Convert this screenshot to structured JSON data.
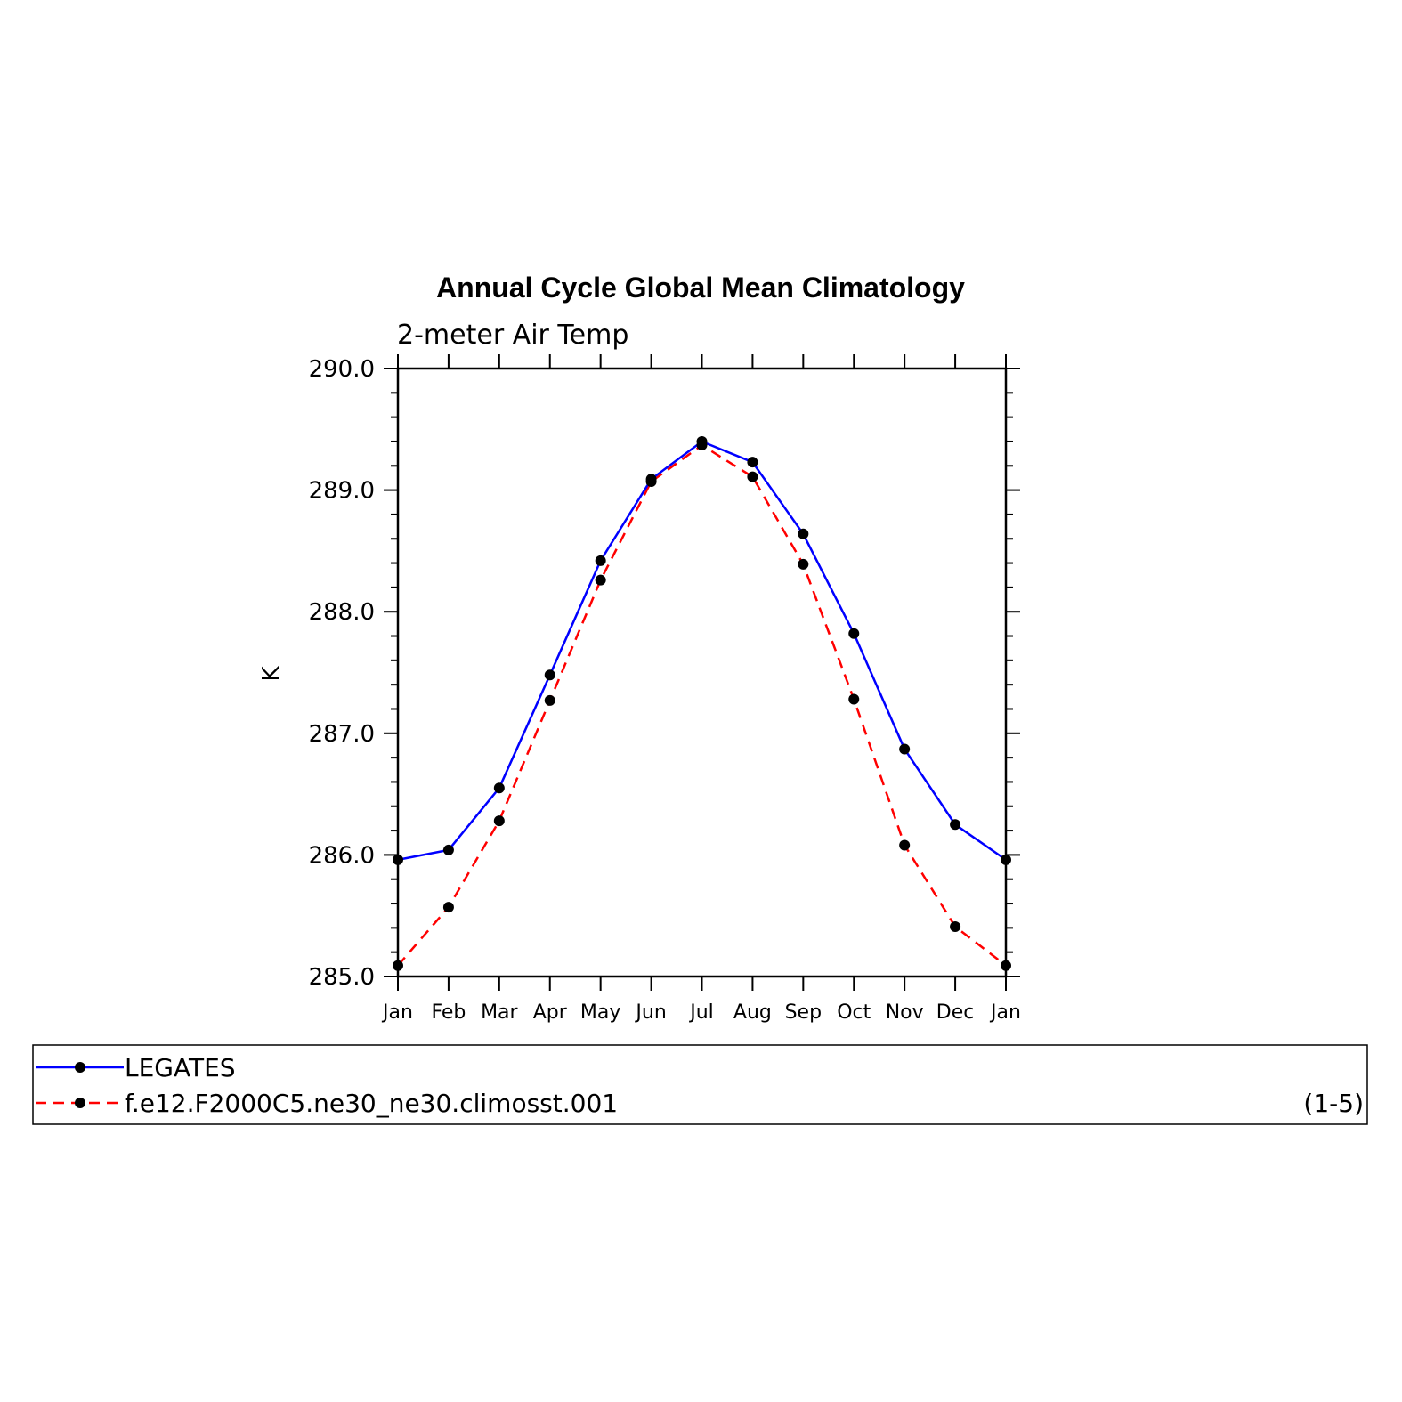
{
  "chart_data": {
    "type": "line",
    "title": "Annual Cycle Global Mean Climatology",
    "subtitle": "2-meter Air Temp",
    "ylabel": "K",
    "xlabel": "",
    "categories": [
      "Jan",
      "Feb",
      "Mar",
      "Apr",
      "May",
      "Jun",
      "Jul",
      "Aug",
      "Sep",
      "Oct",
      "Nov",
      "Dec",
      "Jan"
    ],
    "ylim": [
      285.0,
      290.0
    ],
    "yticks": [
      "285.0",
      "286.0",
      "287.0",
      "288.0",
      "289.0",
      "290.0"
    ],
    "series": [
      {
        "name": "LEGATES",
        "color": "#0000ff",
        "style": "solid",
        "values": [
          285.96,
          286.04,
          286.55,
          287.48,
          288.42,
          289.09,
          289.4,
          289.23,
          288.64,
          287.82,
          286.87,
          286.25,
          285.96
        ]
      },
      {
        "name": "f.e12.F2000C5.ne30_ne30.climosst.001",
        "color": "#ff0000",
        "style": "dashed",
        "values": [
          285.09,
          285.57,
          286.28,
          287.27,
          288.26,
          289.07,
          289.37,
          289.11,
          288.39,
          287.28,
          286.08,
          285.41,
          285.09
        ]
      }
    ],
    "grid": false,
    "legend": "bottom",
    "annotation": "(1-5)"
  }
}
